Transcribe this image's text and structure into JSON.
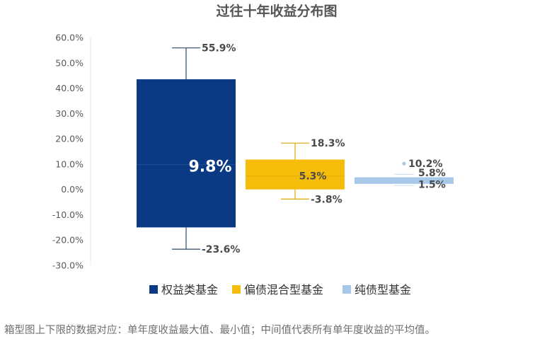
{
  "chart_data": {
    "type": "boxplot",
    "title": "过往十年收益分布图",
    "ylim": [
      -30,
      60
    ],
    "yticks": [
      "60.0%",
      "50.0%",
      "40.0%",
      "30.0%",
      "20.0%",
      "10.0%",
      "0.0%",
      "-10.0%",
      "-20.0%",
      "-30.0%"
    ],
    "grid": false,
    "legend_position": "bottom",
    "series": [
      {
        "name": "权益类基金",
        "color": "#0a3a83",
        "max": 55.9,
        "q3": 43.5,
        "mean": 9.8,
        "q1": -15.0,
        "min": -23.6,
        "max_label": "55.9%",
        "mean_label": "9.8%",
        "min_label": "-23.6%"
      },
      {
        "name": "偏债混合型基金",
        "color": "#f5bd0a",
        "max": 18.3,
        "q3": 11.8,
        "mean": 5.3,
        "q1": 0.0,
        "min": -3.8,
        "max_label": "18.3%",
        "mean_label": "5.3%",
        "min_label": "-3.8%"
      },
      {
        "name": "纯债型基金",
        "color": "#a8c8ea",
        "max": 10.2,
        "q3": 5.0,
        "mean": 5.8,
        "q1": 2.0,
        "min": 1.5,
        "max_label": "10.2%",
        "mean_label": "5.8%",
        "min_label": "1.5%"
      }
    ]
  },
  "footnote": "箱型图上下限的数据对应：单年度收益最大值、最小值；中间值代表所有单年度收益的平均值。"
}
